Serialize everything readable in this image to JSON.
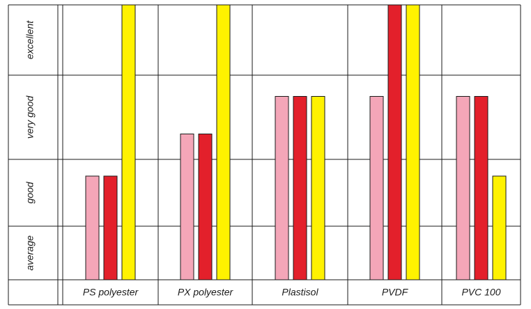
{
  "chart_data": {
    "type": "bar",
    "title": "",
    "xlabel": "",
    "ylabel": "",
    "categories": [
      "PS polyester",
      "PX polyester",
      "Plastisol",
      "PVDF",
      "PVC 100"
    ],
    "y_levels": [
      "average",
      "good",
      "very good",
      "excellent"
    ],
    "ylim": [
      0,
      4
    ],
    "grid": true,
    "legend": "none",
    "series": [
      {
        "color": "#f4a6b8",
        "values": [
          1.75,
          2.3,
          2.75,
          2.75,
          2.75
        ]
      },
      {
        "color": "#e3202b",
        "values": [
          1.75,
          2.3,
          2.75,
          4.0,
          2.75
        ]
      },
      {
        "color": "#fff200",
        "values": [
          4.0,
          4.0,
          2.75,
          4.0,
          1.75
        ]
      }
    ]
  }
}
